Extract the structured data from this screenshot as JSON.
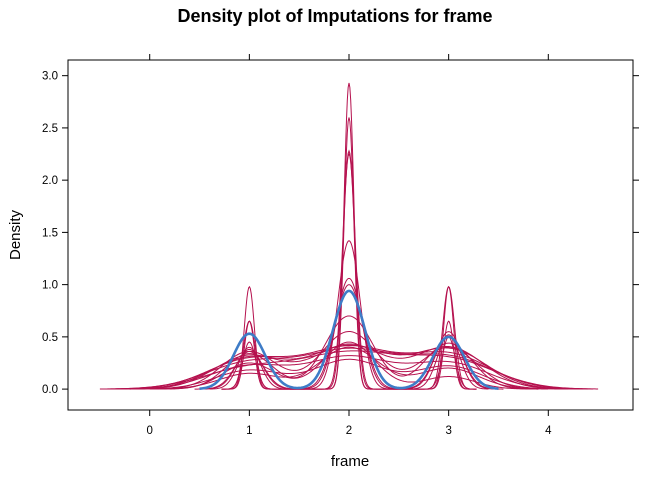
{
  "chart_data": {
    "type": "line",
    "title": "Density plot of Imputations for frame",
    "xlabel": "frame",
    "ylabel": "Density",
    "xlim": [
      -0.82,
      4.85
    ],
    "ylim": [
      -0.2,
      3.15
    ],
    "xticks": [
      0,
      1,
      2,
      3,
      4
    ],
    "yticks": [
      0.0,
      0.5,
      1.0,
      1.5,
      2.0,
      2.5,
      3.0
    ],
    "ytick_labels": [
      "0.0",
      "0.5",
      "1.0",
      "1.5",
      "2.0",
      "2.5",
      "3.0"
    ],
    "grid": false,
    "legend": "none",
    "colors": {
      "observed": "#3e7cc7",
      "imputed": "#b5114e"
    },
    "series": [
      {
        "role": "observed",
        "bw": 0.16,
        "xrange": [
          0.5,
          3.5
        ],
        "peaks": [
          0.53,
          0.94,
          0.5
        ]
      },
      {
        "role": "imputed",
        "bw": 0.05,
        "xrange": [
          0.72,
          3.28
        ],
        "peaks": [
          0.98,
          2.93,
          0.98
        ]
      },
      {
        "role": "imputed",
        "bw": 0.05,
        "xrange": [
          0.72,
          3.28
        ],
        "peaks": [
          0.65,
          2.6,
          0.65
        ]
      },
      {
        "role": "imputed",
        "bw": 0.06,
        "xrange": [
          0.72,
          3.28
        ],
        "peaks": [
          0.65,
          2.28,
          0.98
        ]
      },
      {
        "role": "imputed",
        "bw": 0.065,
        "xrange": [
          0.72,
          3.28
        ],
        "peaks": [
          0.45,
          2.25,
          0.5
        ]
      },
      {
        "role": "imputed",
        "bw": 0.11,
        "xrange": [
          0.6,
          3.4
        ],
        "peaks": [
          0.4,
          1.42,
          0.52
        ]
      },
      {
        "role": "imputed",
        "bw": 0.13,
        "xrange": [
          0.5,
          3.5
        ],
        "peaks": [
          0.38,
          1.06,
          0.55
        ]
      },
      {
        "role": "imputed",
        "bw": 0.14,
        "xrange": [
          0.45,
          3.55
        ],
        "peaks": [
          0.36,
          1.0,
          0.5
        ]
      },
      {
        "role": "imputed",
        "bw": 0.24,
        "xrange": [
          0.2,
          3.8
        ],
        "peaks": [
          0.34,
          0.7,
          0.44
        ]
      },
      {
        "role": "imputed",
        "bw": 0.28,
        "xrange": [
          0.1,
          3.9
        ],
        "peaks": [
          0.36,
          0.55,
          0.4
        ]
      },
      {
        "role": "imputed",
        "bw": 0.35,
        "xrange": [
          -0.2,
          4.2
        ],
        "peaks": [
          0.32,
          0.42,
          0.4
        ]
      },
      {
        "role": "imputed",
        "bw": 0.38,
        "xrange": [
          -0.3,
          4.3
        ],
        "peaks": [
          0.3,
          0.4,
          0.38
        ]
      },
      {
        "role": "imputed",
        "bw": 0.42,
        "xrange": [
          -0.4,
          4.4
        ],
        "peaks": [
          0.28,
          0.38,
          0.33
        ]
      },
      {
        "role": "imputed",
        "bw": 0.44,
        "xrange": [
          -0.45,
          4.45
        ],
        "peaks": [
          0.25,
          0.35,
          0.3
        ]
      },
      {
        "role": "imputed",
        "bw": 0.46,
        "xrange": [
          -0.5,
          4.5
        ],
        "peaks": [
          0.2,
          0.32,
          0.28
        ]
      },
      {
        "role": "imputed",
        "bw": 0.4,
        "xrange": [
          -0.35,
          4.35
        ],
        "peaks": [
          0.22,
          0.3,
          0.25
        ]
      },
      {
        "role": "imputed",
        "bw": 0.34,
        "xrange": [
          -0.2,
          4.2
        ],
        "peaks": [
          0.18,
          0.28,
          0.22
        ]
      },
      {
        "role": "imputed",
        "bw": 0.3,
        "xrange": [
          0.0,
          4.0
        ],
        "peaks": [
          0.15,
          0.4,
          0.2
        ]
      },
      {
        "role": "imputed",
        "bw": 0.26,
        "xrange": [
          0.1,
          3.9
        ],
        "peaks": [
          0.25,
          0.45,
          0.12
        ]
      }
    ]
  }
}
